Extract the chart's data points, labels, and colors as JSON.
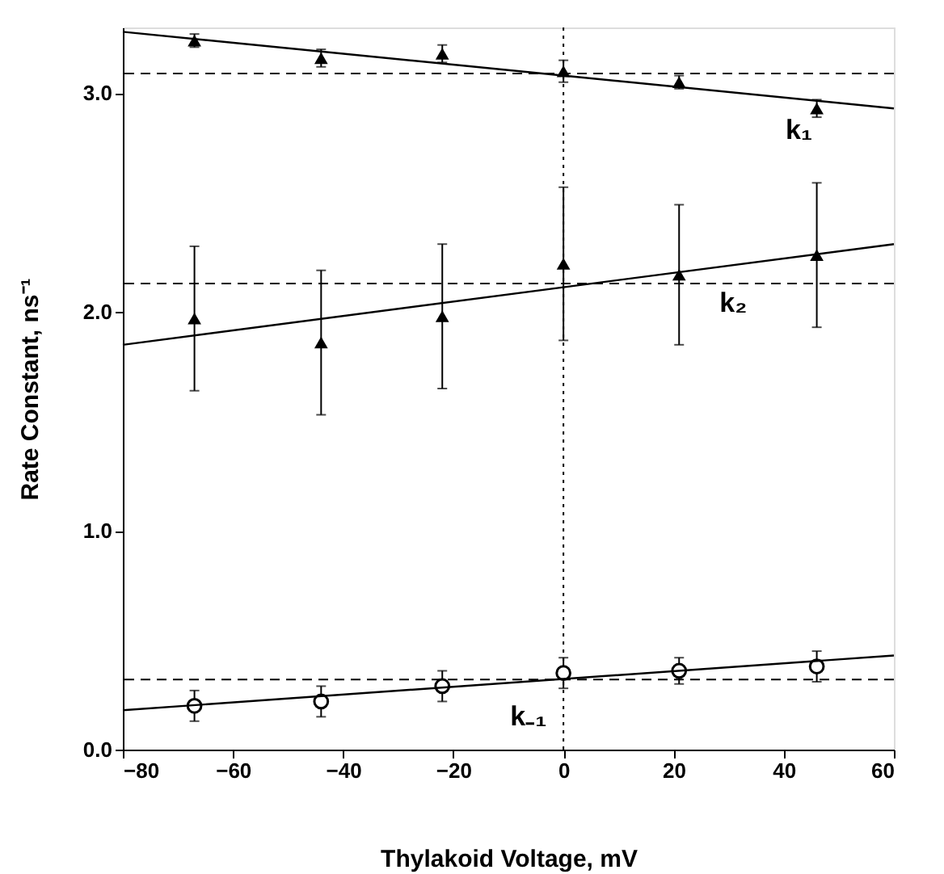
{
  "chart_data": {
    "type": "scatter",
    "xlabel": "Thylakoid Voltage, mV",
    "ylabel": "Rate Constant, ns⁻¹",
    "xlim": [
      -80,
      60
    ],
    "xticks": [
      -80,
      -60,
      -40,
      -20,
      0,
      20,
      40,
      60
    ],
    "ylim": [
      0,
      3.3
    ],
    "yticks": [
      {
        "value": 0,
        "label": "0.0"
      },
      {
        "value": 1,
        "label": "1.0"
      },
      {
        "value": 2,
        "label": "2.0"
      },
      {
        "value": 3,
        "label": "3.0"
      }
    ],
    "grid": false,
    "series": [
      {
        "marker": "triangle",
        "color": "#000000",
        "x": [
          -67,
          -44,
          -22,
          0,
          21,
          46
        ],
        "values": [
          3.24,
          3.16,
          3.18,
          3.1,
          3.05,
          2.93
        ],
        "errors": [
          0.03,
          0.04,
          0.04,
          0.05,
          0.03,
          0.04
        ]
      },
      {
        "marker": "triangle",
        "color": "#000000",
        "x": [
          -67,
          -44,
          -22,
          0,
          21,
          46
        ],
        "values": [
          1.97,
          1.86,
          1.98,
          2.22,
          2.17,
          2.26
        ],
        "errors": [
          0.33,
          0.33,
          0.33,
          0.35,
          0.32,
          0.33
        ]
      },
      {
        "marker": "circle",
        "color": "#000000",
        "x": [
          -67,
          -44,
          -22,
          0,
          21,
          46
        ],
        "values": [
          0.2,
          0.22,
          0.29,
          0.35,
          0.36,
          0.38
        ],
        "errors": [
          0.07,
          0.07,
          0.07,
          0.07,
          0.06,
          0.07
        ]
      },
      {
        "type": "line",
        "line_style": "solid",
        "color": "#000000",
        "x": [
          -80,
          60
        ],
        "values": [
          3.28,
          2.93
        ]
      },
      {
        "type": "line",
        "line_style": "solid",
        "color": "#000000",
        "x": [
          -80,
          60
        ],
        "values": [
          1.85,
          2.31
        ]
      },
      {
        "type": "line",
        "line_style": "solid",
        "color": "#000000",
        "x": [
          -80,
          60
        ],
        "values": [
          0.18,
          0.43
        ]
      }
    ],
    "ref_lines": [
      {
        "axis": "y",
        "value": 3.09,
        "line_style": "dashed"
      },
      {
        "axis": "y",
        "value": 2.13,
        "line_style": "dashed"
      },
      {
        "axis": "y",
        "value": 0.32,
        "line_style": "dashed"
      },
      {
        "axis": "x",
        "value": 0,
        "line_style": "dotted"
      }
    ],
    "annotations": [
      {
        "text": "k₁",
        "x": 38,
        "y": 2.99
      },
      {
        "text": "k₂",
        "x": 26,
        "y": 2.2
      },
      {
        "text": "k₋₁",
        "x": -12,
        "y": 0.31
      }
    ]
  }
}
